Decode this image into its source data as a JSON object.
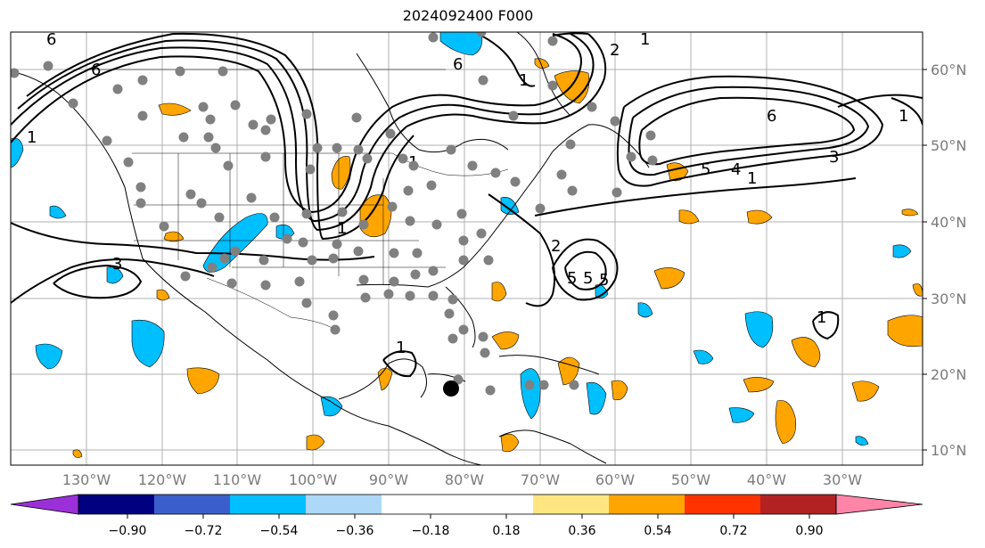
{
  "title": "2024092400 F000",
  "lat_labels": [
    "60°N",
    "50°N",
    "40°N",
    "30°N",
    "20°N",
    "10°N"
  ],
  "lon_labels": [
    "130°W",
    "120°W",
    "110°W",
    "100°W",
    "90°W",
    "80°W",
    "70°W",
    "60°W",
    "50°W",
    "40°W",
    "30°W"
  ],
  "contour_labels": [
    "6",
    "6",
    "1",
    "6",
    "1",
    "2",
    "1",
    "6",
    "5",
    "5",
    "4",
    "1",
    "3",
    "1",
    "5",
    "5",
    "2",
    "3",
    "1",
    "1",
    "1",
    "1"
  ],
  "colorbar": {
    "colors": [
      "#9b30d8",
      "#000080",
      "#3a5fcd",
      "#00bfff",
      "#add8f7",
      "#ffffff",
      "#ffe680",
      "#ffa500",
      "#ff3300",
      "#b22222",
      "#ff85a8"
    ],
    "tick_labels": [
      "−0.90",
      "−0.72",
      "−0.54",
      "−0.36",
      "−0.18",
      "0.18",
      "0.36",
      "0.54",
      "0.72",
      "0.90"
    ]
  },
  "colors": {
    "positive": "#ffa500",
    "negative": "#00bfff",
    "station": "#808080",
    "grid": "#b0b0b0"
  }
}
